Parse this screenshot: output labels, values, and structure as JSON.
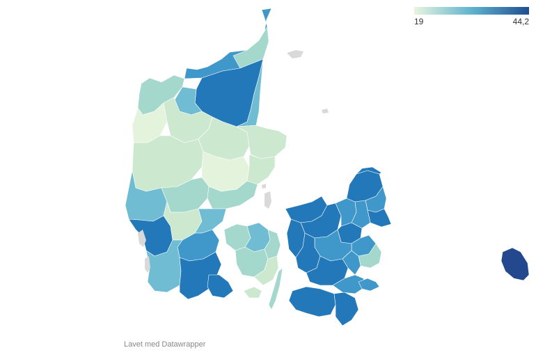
{
  "legend": {
    "min_label": "19",
    "max_label": "44,2",
    "min_color": "#e8f5df",
    "mid_color": "#5fb3cf",
    "max_color": "#1f4e91"
  },
  "credit": "Lavet med Datawrapper",
  "colors": {
    "very_light": "#e4f3dc",
    "light": "#cce9cf",
    "light_mid": "#a5d8cc",
    "mid": "#6fbcd3",
    "mid_dark": "#3f98c9",
    "dark": "#2378b9",
    "darkest": "#23488e",
    "no_data": "#d9d9d9",
    "border": "#ffffff"
  }
}
